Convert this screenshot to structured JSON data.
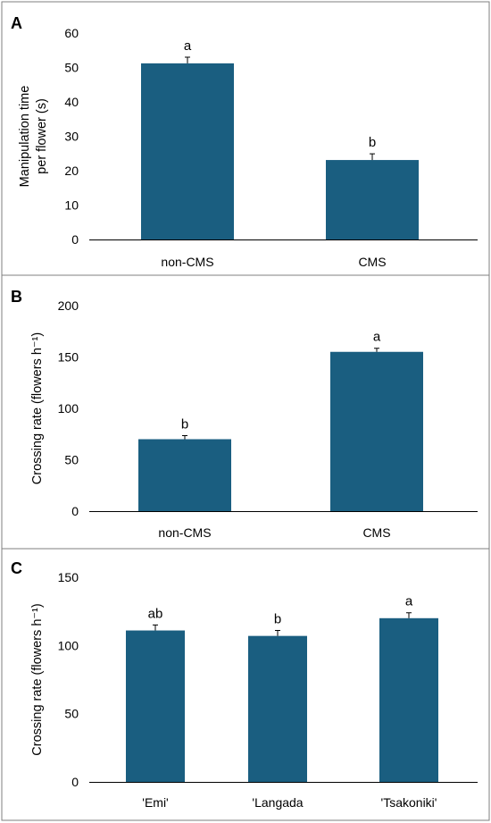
{
  "colors": {
    "bar": "#1a5e80",
    "frame": "#7f7f7f"
  },
  "chart_data": [
    {
      "panel": "A",
      "type": "bar",
      "ylabel": "Manipulation time per flower (s)",
      "ylabel_lines": [
        "Manipulation time",
        "per flower (s)"
      ],
      "ylim": [
        0,
        60
      ],
      "yticks": [
        0,
        10,
        20,
        30,
        40,
        50,
        60
      ],
      "categories": [
        "non-CMS",
        "CMS"
      ],
      "values": [
        51.2,
        23.1
      ],
      "errors": [
        1.8,
        1.8
      ],
      "letters": [
        "a",
        "b"
      ]
    },
    {
      "panel": "B",
      "type": "bar",
      "ylabel": "Crossing rate (flowers h⁻¹)",
      "ylim": [
        0,
        200
      ],
      "yticks": [
        0,
        50,
        100,
        150,
        200
      ],
      "categories": [
        "non-CMS",
        "CMS"
      ],
      "values": [
        70,
        155
      ],
      "errors": [
        3.5,
        3.5
      ],
      "letters": [
        "b",
        "a"
      ]
    },
    {
      "panel": "C",
      "type": "bar",
      "ylabel": "Crossing rate (flowers h⁻¹)",
      "ylim": [
        0,
        150
      ],
      "yticks": [
        0,
        50,
        100,
        150
      ],
      "categories": [
        "'Emi'",
        "'Langada",
        "'Tsakoniki'"
      ],
      "values": [
        111,
        107,
        120
      ],
      "errors": [
        4,
        4,
        4
      ],
      "letters": [
        "ab",
        "b",
        "a"
      ]
    }
  ]
}
